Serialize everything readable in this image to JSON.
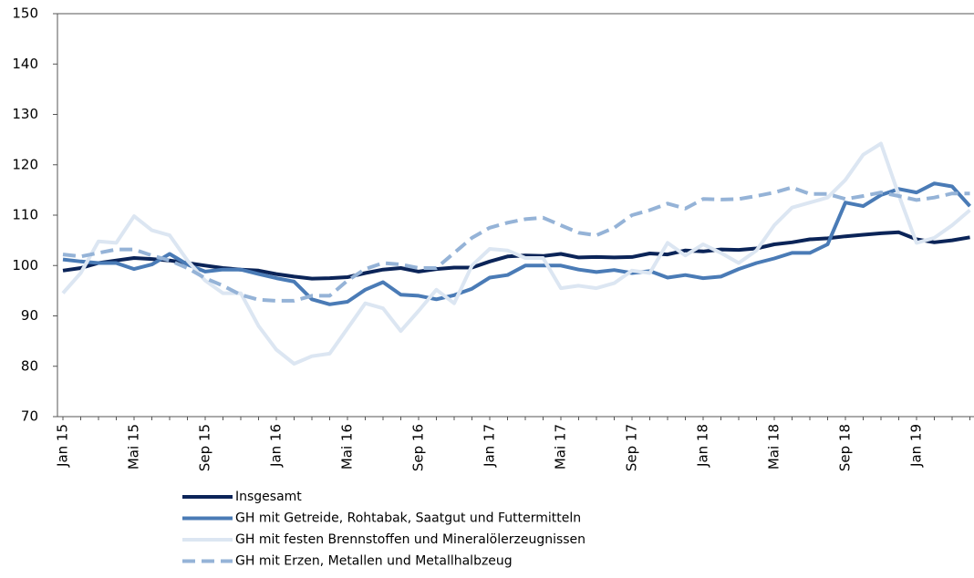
{
  "chart_data": {
    "type": "line",
    "categories": [
      "Jan 15",
      null,
      null,
      null,
      "Mai 15",
      null,
      null,
      null,
      "Sep 15",
      null,
      null,
      null,
      "Jan 16",
      null,
      null,
      null,
      "Mai 16",
      null,
      null,
      null,
      "Sep 16",
      null,
      null,
      null,
      "Jan 17",
      null,
      null,
      null,
      "Mai 17",
      null,
      null,
      null,
      "Sep 17",
      null,
      null,
      null,
      "Jan 18",
      null,
      null,
      null,
      "Mai 18",
      null,
      null,
      null,
      "Sep 18",
      null,
      null,
      null,
      "Jan 19",
      null,
      null,
      null
    ],
    "ylim": [
      70,
      150
    ],
    "yticks": [
      70,
      80,
      90,
      100,
      110,
      120,
      130,
      140,
      150
    ],
    "grid": false,
    "legend": "bottom",
    "series": [
      {
        "name": "Insgesamt",
        "color": "#0b2458",
        "dash": false,
        "values": [
          99,
          99.5,
          100.5,
          101,
          101.5,
          101.3,
          101,
          100.5,
          100,
          99.5,
          99.2,
          99,
          98.3,
          97.8,
          97.4,
          97.5,
          97.7,
          98.5,
          99.2,
          99.5,
          98.8,
          99.3,
          99.6,
          99.6,
          100.8,
          101.8,
          102,
          101.9,
          102.3,
          101.6,
          101.7,
          101.6,
          101.7,
          102.4,
          102.2,
          103,
          102.8,
          103.2,
          103.1,
          103.4,
          104.2,
          104.6,
          105.2,
          105.4,
          105.8,
          106.1,
          106.4,
          106.6,
          105.2,
          104.6,
          105,
          105.6
        ]
      },
      {
        "name": "GH mit Getreide, Rohtabak, Saatgut und Futtermitteln",
        "color": "#4a7bb6",
        "dash": false,
        "values": [
          101.2,
          100.8,
          100.5,
          100.5,
          99.3,
          100.2,
          102.3,
          100.2,
          98.8,
          99.2,
          99.2,
          98.3,
          97.5,
          96.8,
          93.3,
          92.3,
          92.8,
          95.2,
          96.7,
          94.2,
          94,
          93.3,
          94.1,
          95.4,
          97.6,
          98.1,
          100,
          100,
          100,
          99.2,
          98.7,
          99.1,
          98.5,
          98.9,
          97.6,
          98.1,
          97.5,
          97.8,
          99.3,
          100.5,
          101.4,
          102.5,
          102.5,
          104.2,
          112.5,
          111.8,
          114,
          115.2,
          114.5,
          116.3,
          115.7,
          111.8
        ]
      },
      {
        "name": "GH mit festen Brennstoffen und Mineralölerzeugnissen",
        "color": "#dce6f2",
        "dash": false,
        "values": [
          94.5,
          98.5,
          104.8,
          104.5,
          109.8,
          107,
          106,
          101,
          97,
          94.5,
          94.5,
          88,
          83.3,
          80.5,
          82,
          82.5,
          87.5,
          92.5,
          91.5,
          87,
          91,
          95.2,
          92.5,
          100,
          103.3,
          103,
          101.5,
          101.5,
          95.5,
          96,
          95.5,
          96.5,
          99,
          98.5,
          104.5,
          102,
          104.2,
          102.5,
          100.5,
          103,
          108,
          111.5,
          112.5,
          113.5,
          117,
          122,
          124.2,
          114,
          104.5,
          105.5,
          108,
          111
        ]
      },
      {
        "name": "GH mit Erzen, Metallen und Metallhalbzeug",
        "color": "#95b3d7",
        "dash": true,
        "values": [
          102.2,
          101.8,
          102.5,
          103.2,
          103.2,
          102,
          101,
          99.5,
          97.5,
          96,
          94.2,
          93.2,
          93,
          93,
          94,
          94,
          97,
          99.3,
          100.5,
          100.2,
          99.5,
          99.5,
          102.5,
          105.5,
          107.5,
          108.5,
          109.2,
          109.5,
          108,
          106.5,
          106,
          107.5,
          110,
          111,
          112.3,
          111.3,
          113.2,
          113.1,
          113.2,
          113.8,
          114.5,
          115.5,
          114.2,
          114.2,
          113.2,
          113.8,
          114.5,
          113.8,
          113,
          113.5,
          114.3,
          114.3
        ]
      }
    ]
  }
}
